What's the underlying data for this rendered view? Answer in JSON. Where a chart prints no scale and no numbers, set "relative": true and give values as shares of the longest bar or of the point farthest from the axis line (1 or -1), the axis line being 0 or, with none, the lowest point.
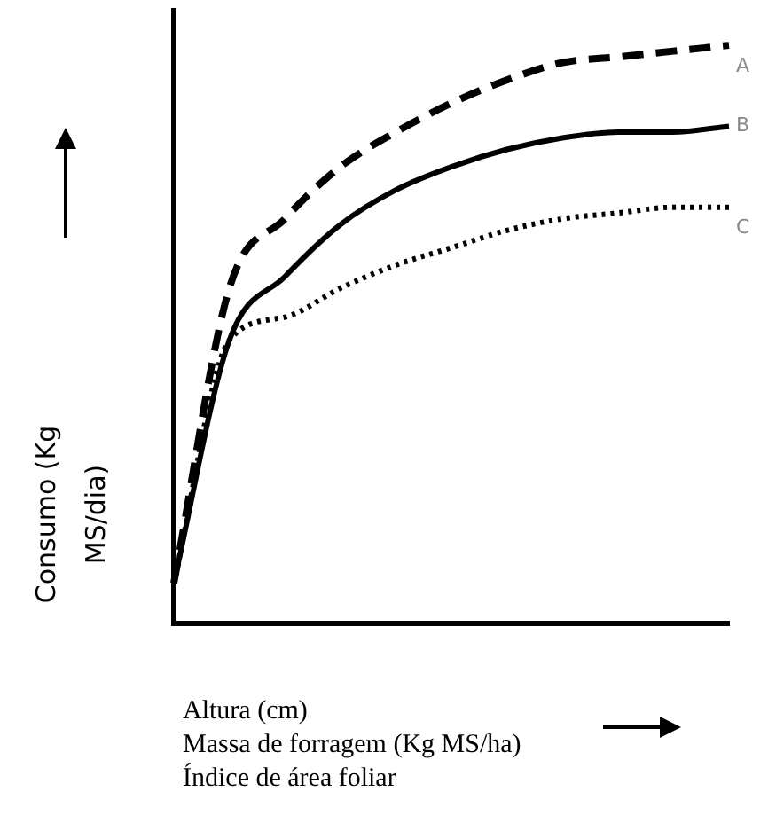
{
  "chart_data": {
    "type": "line",
    "relative": true,
    "xlabel": "Altura (cm)\nMassa de forragem (Kg MS/ha)\nÍndice de área foliar",
    "ylabel": "Consumo (Kg MS/dia)",
    "legend": false,
    "grid": false,
    "marker": "none",
    "categories": [
      null,
      null,
      null,
      null,
      null,
      null,
      null,
      null,
      null,
      null,
      null
    ],
    "series": [
      {
        "name": "A",
        "color": "#000000",
        "line_style": "dashed",
        "values": [
          0.07,
          0.58,
          0.7,
          0.79,
          0.85,
          0.9,
          0.94,
          0.97,
          0.98,
          0.99,
          1
        ]
      },
      {
        "name": "B",
        "color": "#000000",
        "line_style": "solid",
        "values": [
          0.07,
          0.49,
          0.6,
          0.69,
          0.75,
          0.79,
          0.82,
          0.84,
          0.85,
          0.85,
          0.86
        ]
      },
      {
        "name": "C",
        "color": "#000000",
        "line_style": "dotted",
        "values": [
          0.07,
          0.49,
          0.53,
          0.58,
          0.62,
          0.65,
          0.68,
          0.7,
          0.71,
          0.72,
          0.72
        ]
      }
    ]
  }
}
